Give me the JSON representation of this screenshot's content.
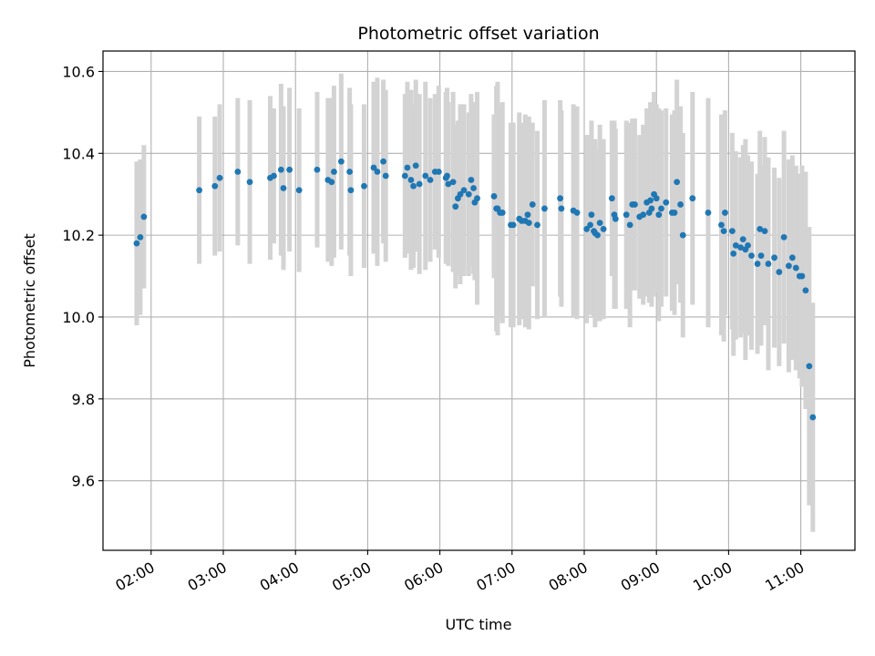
{
  "chart_data": {
    "type": "scatter",
    "title": "Photometric offset variation",
    "xlabel": "UTC time",
    "ylabel": "Photometric offset",
    "x_ticks": [
      "02:00",
      "03:00",
      "04:00",
      "05:00",
      "06:00",
      "07:00",
      "08:00",
      "09:00",
      "10:00",
      "11:00"
    ],
    "y_ticks": [
      "9.6",
      "9.8",
      "10.0",
      "10.2",
      "10.4",
      "10.6"
    ],
    "xlim": [
      "01:20",
      "11:45"
    ],
    "ylim": [
      9.43,
      10.65
    ],
    "grid": true,
    "colors": {
      "points": "#1f77b4",
      "errorbars": "#d3d3d3",
      "grid": "#b0b0b0"
    },
    "series": [
      {
        "x": [
          "01:48",
          "01:51",
          "01:54",
          "02:40",
          "02:53",
          "02:57",
          "03:12",
          "03:22",
          "03:39",
          "03:42",
          "03:48",
          "03:50",
          "03:55",
          "04:03",
          "04:18",
          "04:27",
          "04:30",
          "04:32",
          "04:38",
          "04:45",
          "04:46",
          "04:57",
          "05:05",
          "05:08",
          "05:13",
          "05:15",
          "05:31",
          "05:33",
          "05:36",
          "05:38",
          "05:40",
          "05:43",
          "05:48",
          "05:52",
          "05:56",
          "05:59",
          "06:05",
          "06:06",
          "06:07",
          "06:11",
          "06:13",
          "06:15",
          "06:17",
          "06:20",
          "06:24",
          "06:26",
          "06:28",
          "06:29",
          "06:31",
          "06:45",
          "06:47",
          "06:48",
          "06:50",
          "06:52",
          "06:59",
          "07:01",
          "07:06",
          "07:08",
          "07:11",
          "07:13",
          "07:14",
          "07:17",
          "07:21",
          "07:27",
          "07:40",
          "07:41",
          "07:51",
          "07:54",
          "08:02",
          "08:05",
          "08:06",
          "08:08",
          "08:09",
          "08:11",
          "08:13",
          "08:16",
          "08:23",
          "08:25",
          "08:26",
          "08:35",
          "08:38",
          "08:40",
          "08:42",
          "08:46",
          "08:49",
          "08:52",
          "08:54",
          "08:55",
          "08:56",
          "08:58",
          "09:00",
          "09:02",
          "09:04",
          "09:08",
          "09:13",
          "09:15",
          "09:17",
          "09:20",
          "09:22",
          "09:30",
          "09:43",
          "09:54",
          "09:56",
          "09:57",
          "10:03",
          "10:04",
          "10:06",
          "10:10",
          "10:12",
          "10:14",
          "10:16",
          "10:19",
          "10:24",
          "10:26",
          "10:27",
          "10:30",
          "10:33",
          "10:38",
          "10:42",
          "10:46",
          "10:50",
          "10:53",
          "10:56",
          "10:59",
          "11:01",
          "11:04",
          "11:07",
          "11:10"
        ],
        "y": [
          10.18,
          10.195,
          10.245,
          10.31,
          10.32,
          10.34,
          10.355,
          10.33,
          10.34,
          10.345,
          10.36,
          10.315,
          10.36,
          10.31,
          10.36,
          10.335,
          10.33,
          10.355,
          10.38,
          10.355,
          10.31,
          10.32,
          10.365,
          10.355,
          10.38,
          10.345,
          10.345,
          10.365,
          10.335,
          10.32,
          10.37,
          10.325,
          10.345,
          10.335,
          10.355,
          10.355,
          10.34,
          10.345,
          10.325,
          10.33,
          10.27,
          10.29,
          10.3,
          10.31,
          10.3,
          10.335,
          10.315,
          10.28,
          10.29,
          10.295,
          10.265,
          10.265,
          10.255,
          10.255,
          10.225,
          10.225,
          10.24,
          10.235,
          10.235,
          10.25,
          10.23,
          10.275,
          10.225,
          10.265,
          10.29,
          10.265,
          10.26,
          10.255,
          10.215,
          10.225,
          10.25,
          10.21,
          10.205,
          10.2,
          10.23,
          10.215,
          10.29,
          10.25,
          10.24,
          10.25,
          10.225,
          10.275,
          10.275,
          10.245,
          10.25,
          10.28,
          10.255,
          10.285,
          10.265,
          10.3,
          10.29,
          10.25,
          10.265,
          10.28,
          10.255,
          10.255,
          10.33,
          10.275,
          10.2,
          10.29,
          10.255,
          10.225,
          10.21,
          10.255,
          10.21,
          10.155,
          10.175,
          10.17,
          10.19,
          10.165,
          10.175,
          10.15,
          10.13,
          10.215,
          10.15,
          10.21,
          10.13,
          10.145,
          10.11,
          10.195,
          10.125,
          10.145,
          10.12,
          10.1,
          10.1,
          10.065,
          9.88,
          9.755
        ],
        "err": [
          0.2,
          0.19,
          0.175,
          0.18,
          0.17,
          0.18,
          0.18,
          0.2,
          0.2,
          0.165,
          0.21,
          0.2,
          0.2,
          0.2,
          0.19,
          0.2,
          0.205,
          0.21,
          0.215,
          0.205,
          0.21,
          0.2,
          0.21,
          0.23,
          0.2,
          0.21,
          0.2,
          0.21,
          0.22,
          0.2,
          0.21,
          0.22,
          0.23,
          0.2,
          0.19,
          0.21,
          0.21,
          0.215,
          0.2,
          0.22,
          0.2,
          0.19,
          0.22,
          0.21,
          0.2,
          0.21,
          0.21,
          0.19,
          0.26,
          0.2,
          0.3,
          0.31,
          0.26,
          0.27,
          0.25,
          0.25,
          0.26,
          0.24,
          0.26,
          0.23,
          0.26,
          0.2,
          0.23,
          0.265,
          0.24,
          0.24,
          0.26,
          0.26,
          0.23,
          0.22,
          0.23,
          0.21,
          0.23,
          0.21,
          0.24,
          0.22,
          0.19,
          0.23,
          0.22,
          0.23,
          0.25,
          0.21,
          0.21,
          0.2,
          0.22,
          0.23,
          0.22,
          0.24,
          0.24,
          0.25,
          0.23,
          0.26,
          0.24,
          0.23,
          0.24,
          0.25,
          0.25,
          0.24,
          0.25,
          0.26,
          0.28,
          0.27,
          0.27,
          0.25,
          0.24,
          0.25,
          0.23,
          0.22,
          0.23,
          0.27,
          0.22,
          0.23,
          0.22,
          0.24,
          0.22,
          0.23,
          0.26,
          0.22,
          0.23,
          0.26,
          0.26,
          0.25,
          0.25,
          0.25,
          0.27,
          0.29,
          0.34,
          0.28
        ]
      }
    ]
  }
}
